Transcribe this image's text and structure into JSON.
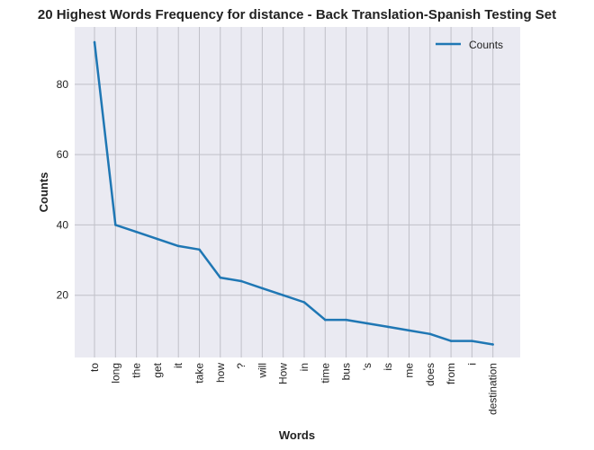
{
  "chart_data": {
    "type": "line",
    "title": "20 Highest Words Frequency for distance - Back Translation-Spanish Testing Set",
    "xlabel": "Words",
    "ylabel": "Counts",
    "categories": [
      "to",
      "long",
      "the",
      "get",
      "it",
      "take",
      "how",
      "?",
      "will",
      "How",
      "in",
      "time",
      "bus",
      "'s",
      "is",
      "me",
      "does",
      "from",
      "i",
      "destination"
    ],
    "series": [
      {
        "name": "Counts",
        "color": "#1f77b4",
        "values": [
          92,
          40,
          38,
          36,
          34,
          33,
          25,
          24,
          22,
          20,
          18,
          13,
          13,
          12,
          11,
          10,
          9,
          7,
          7,
          6
        ]
      }
    ],
    "yticks": [
      20,
      40,
      60,
      80
    ],
    "ylim": [
      2.3,
      96.3
    ],
    "grid": true,
    "legend_position": "top-right",
    "colors": {
      "plot_background": "#eaeaf2",
      "grid": "#c0c0c8"
    }
  }
}
